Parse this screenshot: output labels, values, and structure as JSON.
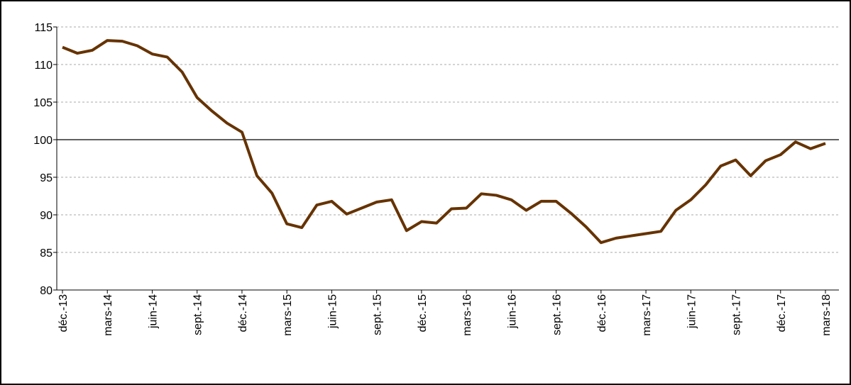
{
  "chart_data": {
    "type": "line",
    "categories": [
      "déc.-13",
      null,
      null,
      "mars-14",
      null,
      null,
      "juin-14",
      null,
      null,
      "sept.-14",
      null,
      null,
      "déc.-14",
      null,
      null,
      "mars-15",
      null,
      null,
      "juin-15",
      null,
      null,
      "sept.-15",
      null,
      null,
      "déc.-15",
      null,
      null,
      "mars-16",
      null,
      null,
      "juin-16",
      null,
      null,
      "sept.-16",
      null,
      null,
      "déc.-16",
      null,
      null,
      "mars-17",
      null,
      null,
      "juin-17",
      null,
      null,
      "sept.-17",
      null,
      null,
      "déc.-17",
      null,
      null,
      "mars-18"
    ],
    "series": [
      {
        "color": "#663300",
        "values": [
          112.3,
          111.5,
          111.9,
          113.2,
          113.1,
          112.5,
          111.4,
          111.0,
          109.0,
          105.6,
          103.8,
          102.2,
          101.0,
          95.2,
          92.9,
          88.8,
          88.3,
          91.3,
          91.8,
          90.1,
          90.9,
          91.7,
          92.0,
          87.9,
          89.1,
          88.9,
          90.8,
          90.9,
          92.8,
          92.6,
          92.0,
          90.6,
          91.8,
          91.8,
          90.2,
          88.4,
          86.3,
          86.9,
          87.2,
          87.5,
          87.8,
          90.6,
          92.0,
          94.0,
          96.5,
          97.3,
          95.2,
          97.2,
          98.0,
          99.7,
          98.8,
          99.5
        ]
      }
    ],
    "ylim": [
      80,
      115
    ],
    "yticks": [
      80,
      85,
      90,
      95,
      100,
      105,
      110,
      115
    ],
    "grid": true,
    "reference_line": 100
  }
}
